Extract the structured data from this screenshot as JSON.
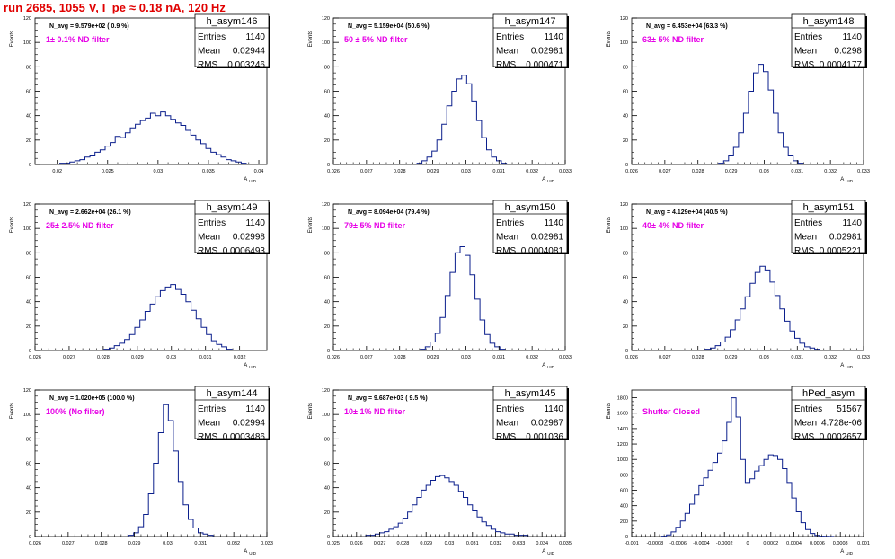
{
  "page_title": "run 2685,  1055 V, I_pe ≈ 0.18 nA, 120 Hz",
  "chart_data": [
    {
      "type": "histogram",
      "name": "h_asym146",
      "stats": {
        "Entries": "1140",
        "Mean": "0.02944",
        "RMS": "0.003246"
      },
      "navg": "N_avg = 9.579e+02 ( 0.9 %)",
      "filter": "1± 0.1% ND filter",
      "ylabel": "Events",
      "xlabel": "A_UID",
      "xlim": [
        0.0178,
        0.0408
      ],
      "ylim": [
        0,
        120
      ],
      "xticks": [
        "0.02",
        "0.025",
        "0.03",
        "0.035",
        "0.04"
      ],
      "xtick_values": [
        0.02,
        0.025,
        0.03,
        0.035,
        0.04
      ],
      "yticks": [
        "0",
        "20",
        "40",
        "60",
        "80",
        "100",
        "120"
      ],
      "ytick_values": [
        0,
        20,
        40,
        60,
        80,
        100,
        120
      ],
      "bins": [
        0.0205,
        0.021,
        0.0215,
        0.022,
        0.0225,
        0.023,
        0.0235,
        0.024,
        0.0245,
        0.025,
        0.0255,
        0.026,
        0.0265,
        0.027,
        0.0275,
        0.028,
        0.0285,
        0.029,
        0.0295,
        0.03,
        0.0305,
        0.031,
        0.0315,
        0.032,
        0.0325,
        0.033,
        0.0335,
        0.034,
        0.0345,
        0.035,
        0.0355,
        0.036,
        0.0365,
        0.037,
        0.0375,
        0.038,
        0.0385
      ],
      "counts": [
        1,
        1,
        2,
        3,
        4,
        6,
        7,
        10,
        12,
        15,
        18,
        23,
        22,
        26,
        30,
        33,
        36,
        38,
        42,
        40,
        43,
        40,
        37,
        34,
        32,
        28,
        24,
        20,
        17,
        13,
        10,
        8,
        6,
        4,
        3,
        2,
        1
      ]
    },
    {
      "type": "histogram",
      "name": "h_asym147",
      "stats": {
        "Entries": "1140",
        "Mean": "0.02981",
        "RMS": "0.000471"
      },
      "navg": "N_avg = 5.159e+04 (50.6 %)",
      "filter": "50 ± 5% ND filter",
      "ylabel": "Events",
      "xlabel": "A_UID",
      "xlim": [
        0.026,
        0.033
      ],
      "ylim": [
        0,
        120
      ],
      "xticks": [
        "0.026",
        "0.027",
        "0.028",
        "0.029",
        "0.03",
        "0.031",
        "0.032",
        "0.033"
      ],
      "xtick_values": [
        0.026,
        0.027,
        0.028,
        0.029,
        0.03,
        0.031,
        0.032,
        0.033
      ],
      "yticks": [
        "0",
        "20",
        "40",
        "60",
        "80",
        "100",
        "120"
      ],
      "ytick_values": [
        0,
        20,
        40,
        60,
        80,
        100,
        120
      ],
      "bins": [
        0.0286,
        0.02875,
        0.0289,
        0.02905,
        0.0292,
        0.02935,
        0.0295,
        0.02965,
        0.0298,
        0.02995,
        0.0301,
        0.03025,
        0.0304,
        0.03055,
        0.0307,
        0.03085,
        0.031,
        0.03115
      ],
      "counts": [
        1,
        3,
        6,
        11,
        20,
        33,
        48,
        60,
        70,
        73,
        66,
        52,
        36,
        22,
        12,
        6,
        3,
        1
      ]
    },
    {
      "type": "histogram",
      "name": "h_asym148",
      "stats": {
        "Entries": "1140",
        "Mean": "0.0298",
        "RMS": "0.0004177"
      },
      "navg": "N_avg = 6.453e+04 (63.3 %)",
      "filter": "63± 5% ND filter",
      "ylabel": "Events",
      "xlabel": "A_UID",
      "xlim": [
        0.026,
        0.033
      ],
      "ylim": [
        0,
        120
      ],
      "xticks": [
        "0.026",
        "0.027",
        "0.028",
        "0.029",
        "0.03",
        "0.031",
        "0.032",
        "0.033"
      ],
      "xtick_values": [
        0.026,
        0.027,
        0.028,
        0.029,
        0.03,
        0.031,
        0.032,
        0.033
      ],
      "yticks": [
        "0",
        "20",
        "40",
        "60",
        "80",
        "100",
        "120"
      ],
      "ytick_values": [
        0,
        20,
        40,
        60,
        80,
        100,
        120
      ],
      "bins": [
        0.0287,
        0.02885,
        0.029,
        0.02915,
        0.0293,
        0.02945,
        0.0296,
        0.02975,
        0.0299,
        0.03005,
        0.0302,
        0.03035,
        0.0305,
        0.03065,
        0.0308,
        0.03095,
        0.0311
      ],
      "counts": [
        1,
        3,
        7,
        14,
        26,
        42,
        60,
        75,
        82,
        76,
        61,
        42,
        26,
        14,
        7,
        3,
        1
      ]
    },
    {
      "type": "histogram",
      "name": "h_asym149",
      "stats": {
        "Entries": "1140",
        "Mean": "0.02998",
        "RMS": "0.0006493"
      },
      "navg": "N_avg = 2.662e+04 (26.1 %)",
      "filter": "25± 2.5% ND filter",
      "ylabel": "Events",
      "xlabel": "A_UID",
      "xlim": [
        0.026,
        0.0328
      ],
      "ylim": [
        0,
        120
      ],
      "xticks": [
        "0.026",
        "0.027",
        "0.028",
        "0.029",
        "0.03",
        "0.031",
        "0.032"
      ],
      "xtick_values": [
        0.026,
        0.027,
        0.028,
        0.029,
        0.03,
        0.031,
        0.032
      ],
      "yticks": [
        "0",
        "20",
        "40",
        "60",
        "80",
        "100",
        "120"
      ],
      "ytick_values": [
        0,
        20,
        40,
        60,
        80,
        100,
        120
      ],
      "bins": [
        0.0281,
        0.02825,
        0.0284,
        0.02855,
        0.0287,
        0.02885,
        0.029,
        0.02915,
        0.0293,
        0.02945,
        0.0296,
        0.02975,
        0.0299,
        0.03005,
        0.0302,
        0.03035,
        0.0305,
        0.03065,
        0.0308,
        0.03095,
        0.0311,
        0.03125,
        0.0314,
        0.03155,
        0.0317
      ],
      "counts": [
        1,
        2,
        4,
        6,
        9,
        13,
        19,
        25,
        32,
        38,
        44,
        49,
        52,
        54,
        50,
        46,
        40,
        33,
        26,
        19,
        13,
        8,
        5,
        3,
        1
      ]
    },
    {
      "type": "histogram",
      "name": "h_asym150",
      "stats": {
        "Entries": "1140",
        "Mean": "0.02981",
        "RMS": "0.0004081"
      },
      "navg": "N_avg = 8.094e+04 (79.4 %)",
      "filter": "79± 5% ND filter",
      "ylabel": "Events",
      "xlabel": "A_UID",
      "xlim": [
        0.026,
        0.033
      ],
      "ylim": [
        0,
        120
      ],
      "xticks": [
        "0.026",
        "0.027",
        "0.028",
        "0.029",
        "0.03",
        "0.031",
        "0.032",
        "0.033"
      ],
      "xtick_values": [
        0.026,
        0.027,
        0.028,
        0.029,
        0.03,
        0.031,
        0.032,
        0.033
      ],
      "yticks": [
        "0",
        "20",
        "40",
        "60",
        "80",
        "100",
        "120"
      ],
      "ytick_values": [
        0,
        20,
        40,
        60,
        80,
        100,
        120
      ],
      "bins": [
        0.0287,
        0.02885,
        0.029,
        0.02915,
        0.0293,
        0.02945,
        0.0296,
        0.02975,
        0.0299,
        0.03005,
        0.0302,
        0.03035,
        0.0305,
        0.03065,
        0.0308,
        0.03095,
        0.0311
      ],
      "counts": [
        1,
        3,
        7,
        14,
        27,
        45,
        64,
        80,
        85,
        78,
        62,
        42,
        25,
        13,
        6,
        3,
        1
      ]
    },
    {
      "type": "histogram",
      "name": "h_asym151",
      "stats": {
        "Entries": "1140",
        "Mean": "0.02981",
        "RMS": "0.0005221"
      },
      "navg": "N_avg = 4.129e+04 (40.5 %)",
      "filter": "40± 4% ND filter",
      "ylabel": "Events",
      "xlabel": "A_UID",
      "xlim": [
        0.026,
        0.033
      ],
      "ylim": [
        0,
        120
      ],
      "xticks": [
        "0.026",
        "0.027",
        "0.028",
        "0.029",
        "0.03",
        "0.031",
        "0.032",
        "0.033"
      ],
      "xtick_values": [
        0.026,
        0.027,
        0.028,
        0.029,
        0.03,
        0.031,
        0.032,
        0.033
      ],
      "yticks": [
        "0",
        "20",
        "40",
        "60",
        "80",
        "100",
        "120"
      ],
      "ytick_values": [
        0,
        20,
        40,
        60,
        80,
        100,
        120
      ],
      "bins": [
        0.0283,
        0.02845,
        0.0286,
        0.02875,
        0.0289,
        0.02905,
        0.0292,
        0.02935,
        0.0295,
        0.02965,
        0.0298,
        0.02995,
        0.0301,
        0.03025,
        0.0304,
        0.03055,
        0.0307,
        0.03085,
        0.031,
        0.03115,
        0.0313,
        0.03145,
        0.0316
      ],
      "counts": [
        1,
        2,
        4,
        7,
        11,
        17,
        25,
        34,
        44,
        55,
        64,
        69,
        66,
        56,
        45,
        34,
        24,
        16,
        10,
        6,
        3,
        2,
        1
      ]
    },
    {
      "type": "histogram",
      "name": "h_asym144",
      "stats": {
        "Entries": "1140",
        "Mean": "0.02994",
        "RMS": "0.0003486"
      },
      "navg": "N_avg = 1.020e+05 (100.0 %)",
      "filter": "100% (No filter)",
      "ylabel": "Events",
      "xlabel": "A_UID",
      "xlim": [
        0.026,
        0.033
      ],
      "ylim": [
        0,
        120
      ],
      "xticks": [
        "0.026",
        "0.027",
        "0.028",
        "0.029",
        "0.03",
        "0.031",
        "0.032",
        "0.033"
      ],
      "xtick_values": [
        0.026,
        0.027,
        0.028,
        0.029,
        0.03,
        0.031,
        0.032,
        0.033
      ],
      "yticks": [
        "0",
        "20",
        "40",
        "60",
        "80",
        "100",
        "120"
      ],
      "ytick_values": [
        0,
        20,
        40,
        60,
        80,
        100,
        120
      ],
      "bins": [
        0.0289,
        0.02905,
        0.0292,
        0.02935,
        0.0295,
        0.02965,
        0.0298,
        0.02995,
        0.0301,
        0.03025,
        0.0304,
        0.03055,
        0.0307,
        0.03085,
        0.031,
        0.03115,
        0.0313
      ],
      "counts": [
        1,
        3,
        8,
        18,
        35,
        60,
        85,
        108,
        95,
        70,
        45,
        26,
        14,
        7,
        3,
        2,
        1
      ]
    },
    {
      "type": "histogram",
      "name": "h_asym145",
      "stats": {
        "Entries": "1140",
        "Mean": "0.02987",
        "RMS": "0.001036"
      },
      "navg": "N_avg = 9.687e+03 ( 9.5 %)",
      "filter": "10± 1% ND filter",
      "ylabel": "Events",
      "xlabel": "A_UID",
      "xlim": [
        0.025,
        0.035
      ],
      "ylim": [
        0,
        120
      ],
      "xticks": [
        "0.025",
        "0.026",
        "0.027",
        "0.028",
        "0.029",
        "0.03",
        "0.031",
        "0.032",
        "0.033",
        "0.034",
        "0.035"
      ],
      "xtick_values": [
        0.025,
        0.026,
        0.027,
        0.028,
        0.029,
        0.03,
        0.031,
        0.032,
        0.033,
        0.034,
        0.035
      ],
      "yticks": [
        "0",
        "20",
        "40",
        "60",
        "80",
        "100",
        "120"
      ],
      "ytick_values": [
        0,
        20,
        40,
        60,
        80,
        100,
        120
      ],
      "bins": [
        0.0265,
        0.0267,
        0.0269,
        0.0271,
        0.0273,
        0.0275,
        0.0277,
        0.0279,
        0.0281,
        0.0283,
        0.0285,
        0.0287,
        0.0289,
        0.0291,
        0.0293,
        0.0295,
        0.0297,
        0.0299,
        0.0301,
        0.0303,
        0.0305,
        0.0307,
        0.0309,
        0.0311,
        0.0313,
        0.0315,
        0.0317,
        0.0319,
        0.0321,
        0.0323,
        0.0325,
        0.0327,
        0.0329,
        0.0331,
        0.0333
      ],
      "counts": [
        1,
        1,
        2,
        3,
        4,
        6,
        8,
        11,
        15,
        20,
        26,
        32,
        38,
        42,
        46,
        49,
        50,
        48,
        45,
        42,
        37,
        32,
        26,
        21,
        16,
        12,
        9,
        6,
        4,
        3,
        2,
        2,
        1,
        1,
        1
      ]
    },
    {
      "type": "histogram",
      "name": "hPed_asym",
      "stats": {
        "Entries": "51567",
        "Mean": "4.728e-06",
        "RMS": "0.0002657"
      },
      "navg": "",
      "filter": "Shutter Closed",
      "ylabel": "Events",
      "xlabel": "A_UID",
      "xlim": [
        -0.001,
        0.001
      ],
      "ylim": [
        0,
        1900
      ],
      "xticks": [
        "-0.001",
        "-0.0008",
        "-0.0006",
        "-0.0004",
        "-0.0002",
        "0",
        "0.0002",
        "0.0004",
        "0.0006",
        "0.0008",
        "0.001"
      ],
      "xtick_values": [
        -0.001,
        -0.0008,
        -0.0006,
        -0.0004,
        -0.0002,
        0,
        0.0002,
        0.0004,
        0.0006,
        0.0008,
        0.001
      ],
      "yticks": [
        "0",
        "200",
        "400",
        "600",
        "800",
        "1000",
        "1200",
        "1400",
        "1600",
        "1800"
      ],
      "ytick_values": [
        0,
        200,
        400,
        600,
        800,
        1000,
        1200,
        1400,
        1600,
        1800
      ],
      "bins": [
        -0.00072,
        -0.00068,
        -0.00064,
        -0.0006,
        -0.00056,
        -0.00052,
        -0.00048,
        -0.00044,
        -0.0004,
        -0.00036,
        -0.00032,
        -0.00028,
        -0.00024,
        -0.0002,
        -0.00016,
        -0.00012,
        -8e-05,
        -4e-05,
        0,
        4e-05,
        8e-05,
        0.00012,
        0.00016,
        0.0002,
        0.00024,
        0.00028,
        0.00032,
        0.00036,
        0.0004,
        0.00044,
        0.00048,
        0.00052,
        0.00056,
        0.0006,
        0.00064,
        0.00068,
        0.00072
      ],
      "counts": [
        5,
        20,
        60,
        120,
        200,
        300,
        420,
        540,
        660,
        760,
        860,
        960,
        1080,
        1240,
        1480,
        1800,
        1550,
        1000,
        700,
        750,
        850,
        920,
        1000,
        1060,
        1050,
        1000,
        880,
        700,
        500,
        320,
        180,
        90,
        40,
        15,
        5,
        2,
        1
      ]
    }
  ]
}
